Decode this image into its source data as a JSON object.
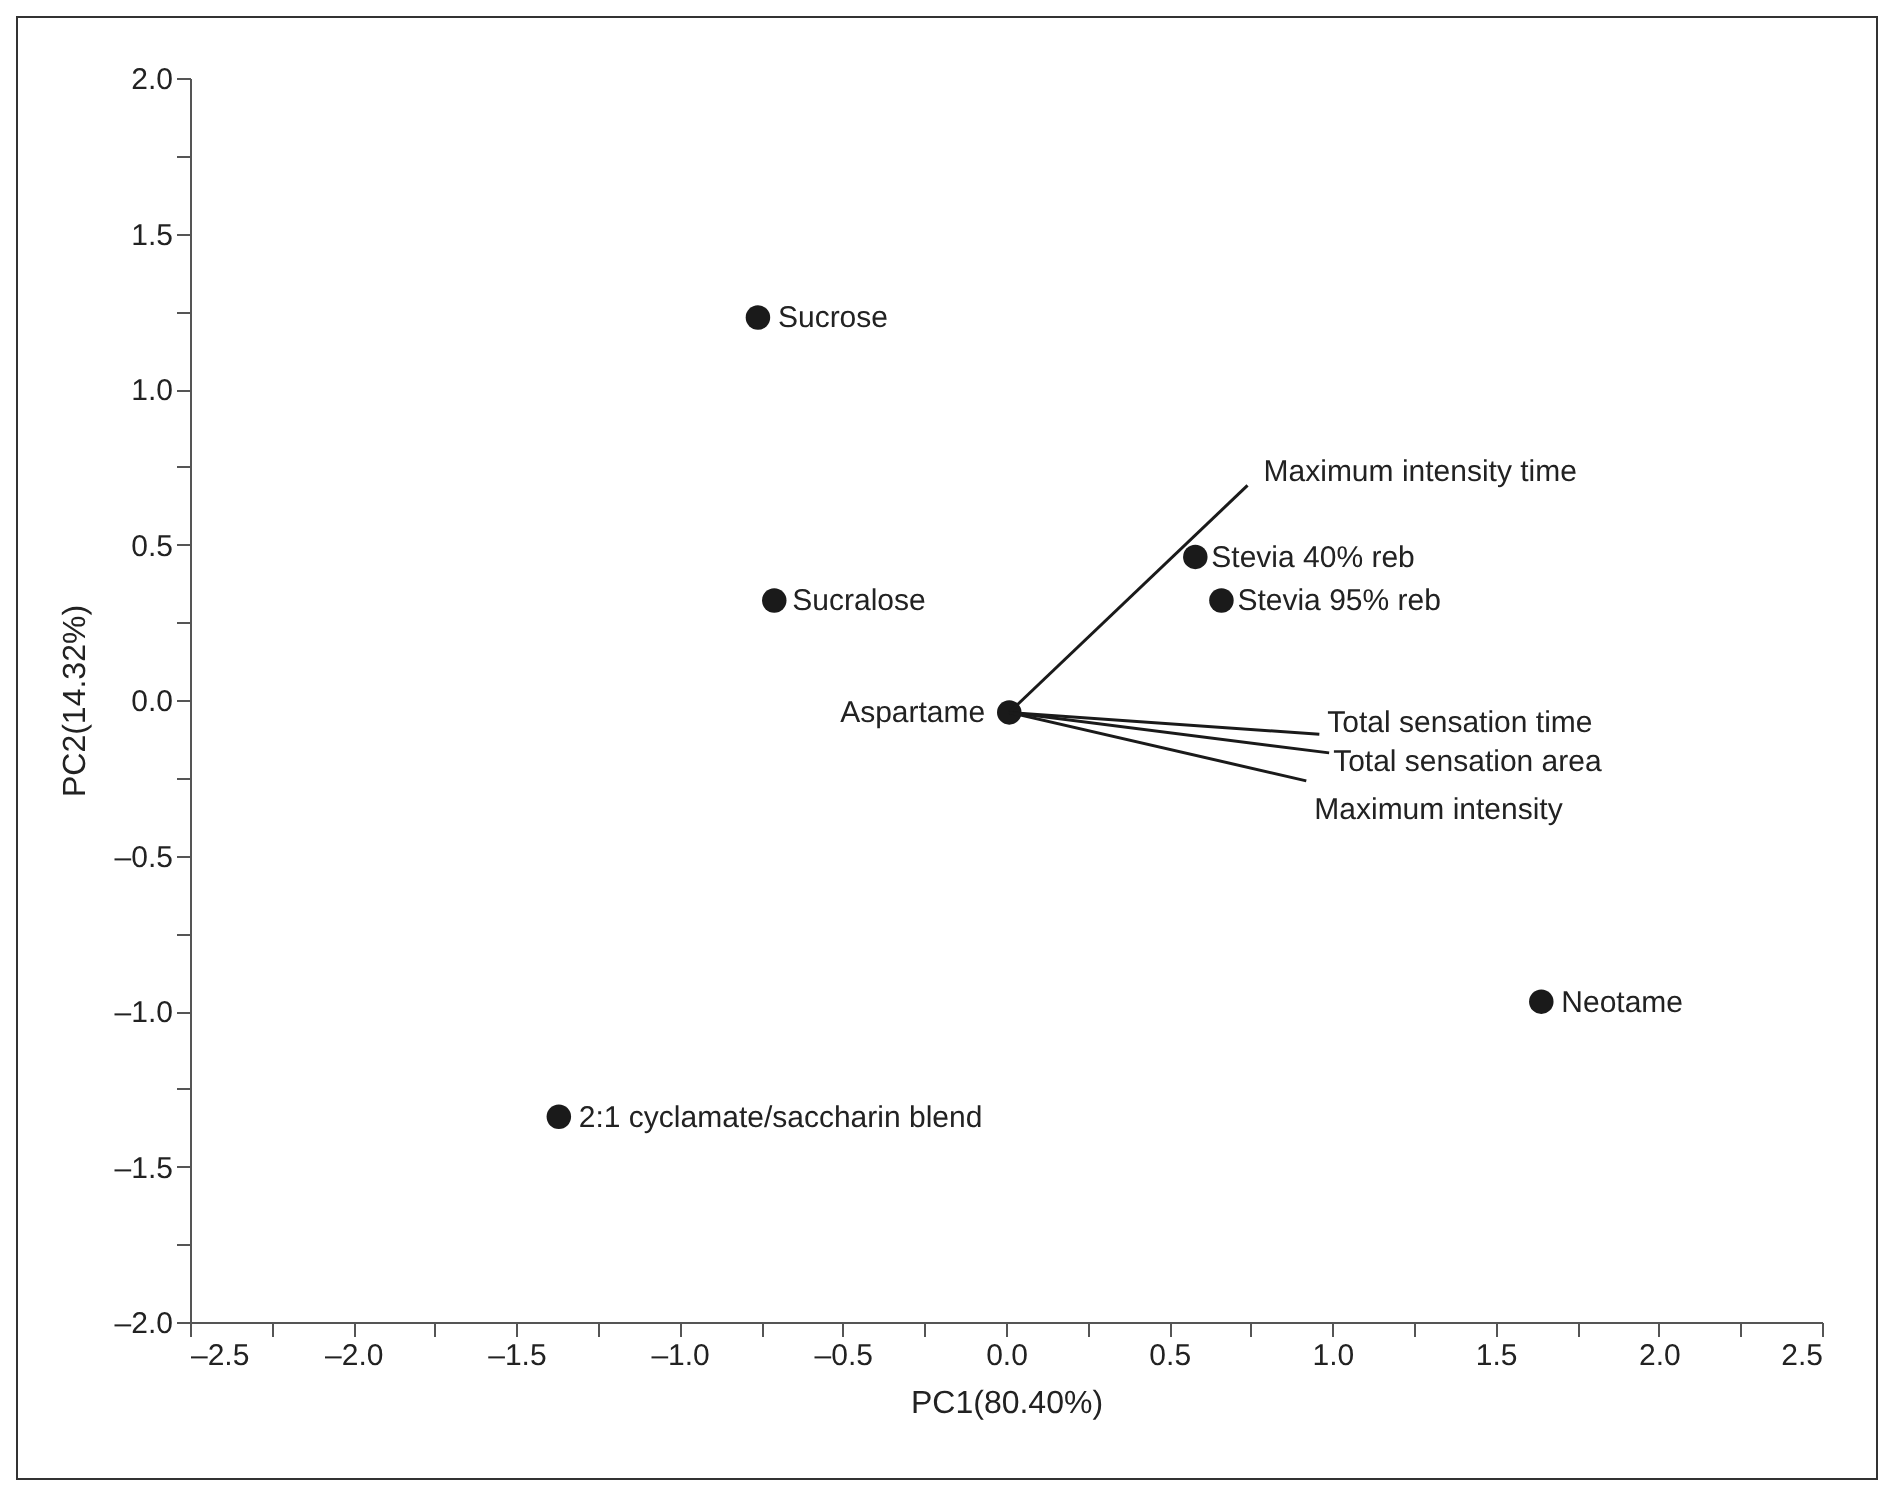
{
  "chart_data": {
    "type": "scatter",
    "xlabel": "PC1(80.40%)",
    "ylabel": "PC2(14.32%)",
    "xlim": [
      -2.5,
      2.5
    ],
    "ylim": [
      -2.0,
      2.0
    ],
    "xticks": [
      {
        "value": -2.5,
        "label": "–2.5"
      },
      {
        "value": -2.25,
        "label": null
      },
      {
        "value": -2.0,
        "label": "–2.0"
      },
      {
        "value": -1.75,
        "label": null
      },
      {
        "value": -1.5,
        "label": "–1.5"
      },
      {
        "value": -1.25,
        "label": null
      },
      {
        "value": -1.0,
        "label": "–1.0"
      },
      {
        "value": -0.75,
        "label": null
      },
      {
        "value": -0.5,
        "label": "–0.5"
      },
      {
        "value": -0.25,
        "label": null
      },
      {
        "value": 0,
        "label": "0.0"
      },
      {
        "value": 0.25,
        "label": null
      },
      {
        "value": 0.5,
        "label": "0.5"
      },
      {
        "value": 0.75,
        "label": null
      },
      {
        "value": 1,
        "label": "1.0"
      },
      {
        "value": 1.25,
        "label": null
      },
      {
        "value": 1.5,
        "label": "1.5"
      },
      {
        "value": 1.75,
        "label": null
      },
      {
        "value": 2,
        "label": "2.0"
      },
      {
        "value": 2.25,
        "label": null
      },
      {
        "value": 2.5,
        "label": "2.5"
      }
    ],
    "yticks": [
      {
        "value": -2.0,
        "label": "–2.0"
      },
      {
        "value": -1.75,
        "label": null
      },
      {
        "value": -1.5,
        "label": "–1.5"
      },
      {
        "value": -1.25,
        "label": null
      },
      {
        "value": -1.0,
        "label": "–1.0"
      },
      {
        "value": -0.75,
        "label": null
      },
      {
        "value": -0.5,
        "label": "–0.5"
      },
      {
        "value": -0.25,
        "label": null
      },
      {
        "value": 0,
        "label": "0.0"
      },
      {
        "value": 0.25,
        "label": null
      },
      {
        "value": 0.5,
        "label": "0.5"
      },
      {
        "value": 0.75,
        "label": null
      },
      {
        "value": 1,
        "label": "1.0"
      },
      {
        "value": 1.25,
        "label": null
      },
      {
        "value": 1.5,
        "label": "1.5"
      },
      {
        "value": 1.75,
        "label": null
      },
      {
        "value": 2,
        "label": "2.0"
      }
    ],
    "grid": false,
    "legend": false,
    "marker": "circle",
    "series": [
      {
        "name": "Sucrose",
        "color": "#1a1a1a",
        "x": [
          -0.76
        ],
        "values": [
          1.23
        ]
      },
      {
        "name": "Sucralose",
        "color": "#1a1a1a",
        "x": [
          -0.71
        ],
        "values": [
          0.32
        ]
      },
      {
        "name": "Aspartame",
        "color": "#1a1a1a",
        "x": [
          0.01
        ],
        "values": [
          -0.04
        ]
      },
      {
        "name": "Stevia 40% reb",
        "color": "#1a1a1a",
        "x": [
          0.58
        ],
        "values": [
          0.46
        ]
      },
      {
        "name": "Stevia 95% reb",
        "color": "#1a1a1a",
        "x": [
          0.66
        ],
        "values": [
          0.32
        ]
      },
      {
        "name": "Neotame",
        "color": "#1a1a1a",
        "x": [
          1.64
        ],
        "values": [
          -0.97
        ]
      },
      {
        "name": "2:1 cyclamate/saccharin blend",
        "color": "#1a1a1a",
        "x": [
          -1.37
        ],
        "values": [
          -1.34
        ]
      },
      {
        "name": "Maximum intensity time",
        "type": "line",
        "marker": "none",
        "line_style": "solid",
        "color": "#1a1a1a",
        "x": [
          0.01,
          0.74
        ],
        "values": [
          -0.04,
          0.69
        ]
      },
      {
        "name": "Total sensation time",
        "type": "line",
        "marker": "none",
        "line_style": "solid",
        "color": "#1a1a1a",
        "x": [
          0.01,
          0.96
        ],
        "values": [
          -0.04,
          -0.11
        ]
      },
      {
        "name": "Total sensation area",
        "type": "line",
        "marker": "none",
        "line_style": "solid",
        "color": "#1a1a1a",
        "x": [
          0.01,
          0.99
        ],
        "values": [
          -0.04,
          -0.17
        ]
      },
      {
        "name": "Maximum intensity",
        "type": "line",
        "marker": "none",
        "line_style": "solid",
        "color": "#1a1a1a",
        "x": [
          0.01,
          0.92
        ],
        "values": [
          -0.04,
          -0.26
        ]
      }
    ]
  }
}
